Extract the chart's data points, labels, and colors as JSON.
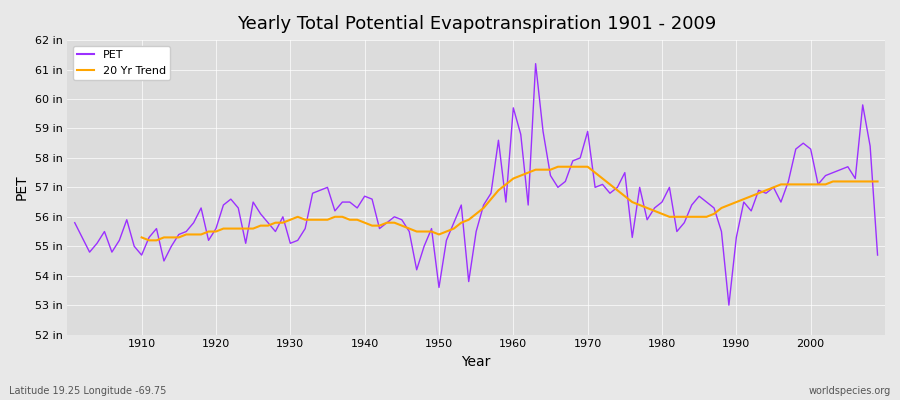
{
  "title": "Yearly Total Potential Evapotranspiration 1901 - 2009",
  "ylabel": "PET",
  "xlabel": "Year",
  "footnote_left": "Latitude 19.25 Longitude -69.75",
  "footnote_right": "worldspecies.org",
  "ylim": [
    52,
    62
  ],
  "ytick_values": [
    52,
    53,
    54,
    55,
    56,
    57,
    58,
    59,
    60,
    61,
    62
  ],
  "xlim": [
    1901,
    2009
  ],
  "pet_color": "#9B30FF",
  "trend_color": "#FFA500",
  "bg_color": "#E8E8E8",
  "plot_bg_color": "#DCDCDC",
  "legend_labels": [
    "PET",
    "20 Yr Trend"
  ],
  "years": [
    1901,
    1902,
    1903,
    1904,
    1905,
    1906,
    1907,
    1908,
    1909,
    1910,
    1911,
    1912,
    1913,
    1914,
    1915,
    1916,
    1917,
    1918,
    1919,
    1920,
    1921,
    1922,
    1923,
    1924,
    1925,
    1926,
    1927,
    1928,
    1929,
    1930,
    1931,
    1932,
    1933,
    1934,
    1935,
    1936,
    1937,
    1938,
    1939,
    1940,
    1941,
    1942,
    1943,
    1944,
    1945,
    1946,
    1947,
    1948,
    1949,
    1950,
    1951,
    1952,
    1953,
    1954,
    1955,
    1956,
    1957,
    1958,
    1959,
    1960,
    1961,
    1962,
    1963,
    1964,
    1965,
    1966,
    1967,
    1968,
    1969,
    1970,
    1971,
    1972,
    1973,
    1974,
    1975,
    1976,
    1977,
    1978,
    1979,
    1980,
    1981,
    1982,
    1983,
    1984,
    1985,
    1986,
    1987,
    1988,
    1989,
    1990,
    1991,
    1992,
    1993,
    1994,
    1995,
    1996,
    1997,
    1998,
    1999,
    2000,
    2001,
    2002,
    2003,
    2004,
    2005,
    2006,
    2007,
    2008,
    2009
  ],
  "pet_values": [
    55.8,
    55.3,
    54.8,
    55.1,
    55.5,
    54.8,
    55.2,
    55.9,
    55.0,
    54.7,
    55.3,
    55.6,
    54.5,
    55.0,
    55.4,
    55.5,
    55.8,
    56.3,
    55.2,
    55.6,
    56.4,
    56.6,
    56.3,
    55.1,
    56.5,
    56.1,
    55.8,
    55.5,
    56.0,
    55.1,
    55.2,
    55.6,
    56.8,
    56.9,
    57.0,
    56.2,
    56.5,
    56.5,
    56.3,
    56.7,
    56.6,
    55.6,
    55.8,
    56.0,
    55.9,
    55.5,
    54.2,
    55.0,
    55.6,
    53.6,
    55.2,
    55.8,
    56.4,
    53.8,
    55.5,
    56.4,
    56.8,
    58.6,
    56.5,
    59.7,
    58.8,
    56.4,
    61.2,
    58.9,
    57.4,
    57.0,
    57.2,
    57.9,
    58.0,
    58.9,
    57.0,
    57.1,
    56.8,
    57.0,
    57.5,
    55.3,
    57.0,
    55.9,
    56.3,
    56.5,
    57.0,
    55.5,
    55.8,
    56.4,
    56.7,
    56.5,
    56.3,
    55.5,
    53.0,
    55.3,
    56.5,
    56.2,
    56.9,
    56.8,
    57.0,
    56.5,
    57.2,
    58.3,
    58.5,
    58.3,
    57.1,
    57.4,
    57.5,
    57.6,
    57.7,
    57.3,
    59.8,
    58.4,
    54.7
  ],
  "trend_values": [
    null,
    null,
    null,
    null,
    null,
    null,
    null,
    null,
    null,
    55.3,
    55.2,
    55.2,
    55.3,
    55.3,
    55.3,
    55.4,
    55.4,
    55.4,
    55.5,
    55.5,
    55.6,
    55.6,
    55.6,
    55.6,
    55.6,
    55.7,
    55.7,
    55.8,
    55.8,
    55.9,
    56.0,
    55.9,
    55.9,
    55.9,
    55.9,
    56.0,
    56.0,
    55.9,
    55.9,
    55.8,
    55.7,
    55.7,
    55.8,
    55.8,
    55.7,
    55.6,
    55.5,
    55.5,
    55.5,
    55.4,
    55.5,
    55.6,
    55.8,
    55.9,
    56.1,
    56.3,
    56.6,
    56.9,
    57.1,
    57.3,
    57.4,
    57.5,
    57.6,
    57.6,
    57.6,
    57.7,
    57.7,
    57.7,
    57.7,
    57.7,
    57.5,
    57.3,
    57.1,
    56.9,
    56.7,
    56.5,
    56.4,
    56.3,
    56.2,
    56.1,
    56.0,
    56.0,
    56.0,
    56.0,
    56.0,
    56.0,
    56.1,
    56.3,
    56.4,
    56.5,
    56.6,
    56.7,
    56.8,
    56.9,
    57.0,
    57.1,
    57.1,
    57.1,
    57.1,
    57.1,
    57.1,
    57.1,
    57.2,
    57.2,
    57.2,
    57.2,
    57.2,
    57.2,
    57.2
  ]
}
